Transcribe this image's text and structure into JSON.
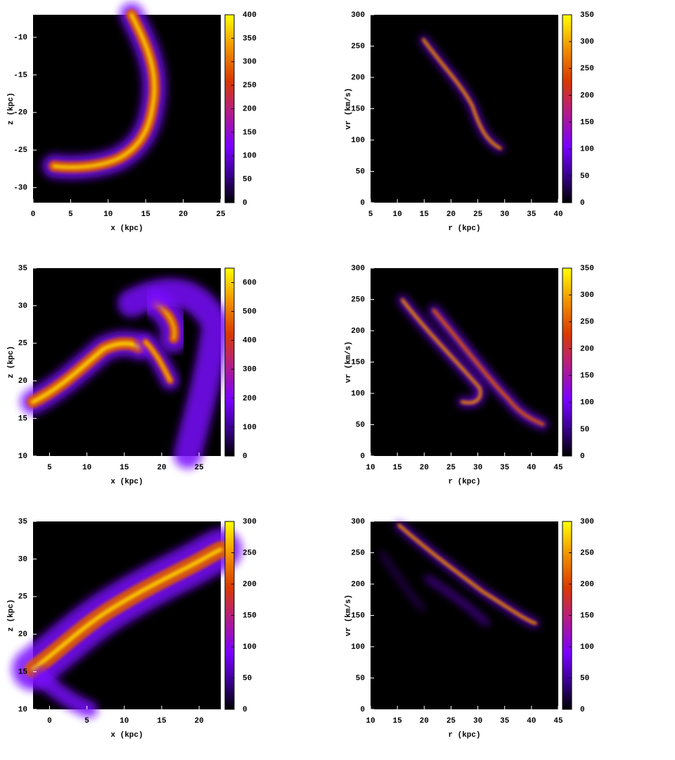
{
  "chart_data": [
    {
      "type": "heatmap",
      "xlabel": "x (kpc)",
      "ylabel": "z (kpc)",
      "xlim": [
        0,
        25
      ],
      "ylim": [
        -32,
        -7
      ],
      "xticks": [
        0,
        5,
        10,
        15,
        20,
        25
      ],
      "yticks": [
        -30,
        -25,
        -20,
        -15,
        -10
      ],
      "clim": [
        0,
        400
      ],
      "cticks": [
        0,
        50,
        100,
        150,
        200,
        250,
        300,
        350,
        400
      ]
    },
    {
      "type": "heatmap",
      "xlabel": "r (kpc)",
      "ylabel": "vr (km/s)",
      "xlim": [
        5,
        40
      ],
      "ylim": [
        0,
        300
      ],
      "xticks": [
        5,
        10,
        15,
        20,
        25,
        30,
        35,
        40
      ],
      "yticks": [
        0,
        50,
        100,
        150,
        200,
        250,
        300
      ],
      "clim": [
        0,
        350
      ],
      "cticks": [
        0,
        50,
        100,
        150,
        200,
        250,
        300,
        350
      ]
    },
    {
      "type": "heatmap",
      "xlabel": "x (kpc)",
      "ylabel": "z (kpc)",
      "xlim": [
        2.8,
        27.9
      ],
      "ylim": [
        10,
        35
      ],
      "xticks": [
        5,
        10,
        15,
        20,
        25
      ],
      "yticks": [
        10,
        15,
        20,
        25,
        30,
        35
      ],
      "clim": [
        0,
        650
      ],
      "cticks": [
        0,
        100,
        200,
        300,
        400,
        500,
        600
      ]
    },
    {
      "type": "heatmap",
      "xlabel": "r (kpc)",
      "ylabel": "vr (km/s)",
      "xlim": [
        10,
        45
      ],
      "ylim": [
        0,
        300
      ],
      "xticks": [
        10,
        15,
        20,
        25,
        30,
        35,
        40,
        45
      ],
      "yticks": [
        0,
        50,
        100,
        150,
        200,
        250,
        300
      ],
      "clim": [
        0,
        350
      ],
      "cticks": [
        0,
        50,
        100,
        150,
        200,
        250,
        300,
        350
      ]
    },
    {
      "type": "heatmap",
      "xlabel": "x (kpc)",
      "ylabel": "z (kpc)",
      "xlim": [
        -2.2,
        22.9
      ],
      "ylim": [
        10,
        35
      ],
      "xticks": [
        0,
        5,
        10,
        15,
        20
      ],
      "yticks": [
        10,
        15,
        20,
        25,
        30,
        35
      ],
      "clim": [
        0,
        300
      ],
      "cticks": [
        0,
        50,
        100,
        150,
        200,
        250,
        300
      ]
    },
    {
      "type": "heatmap",
      "xlabel": "r (kpc)",
      "ylabel": "vr (km/s)",
      "xlim": [
        10,
        45
      ],
      "ylim": [
        0,
        300
      ],
      "xticks": [
        10,
        15,
        20,
        25,
        30,
        35,
        40,
        45
      ],
      "yticks": [
        0,
        50,
        100,
        150,
        200,
        250,
        300
      ],
      "clim": [
        0,
        300
      ],
      "cticks": [
        0,
        50,
        100,
        150,
        200,
        250,
        300
      ]
    }
  ]
}
